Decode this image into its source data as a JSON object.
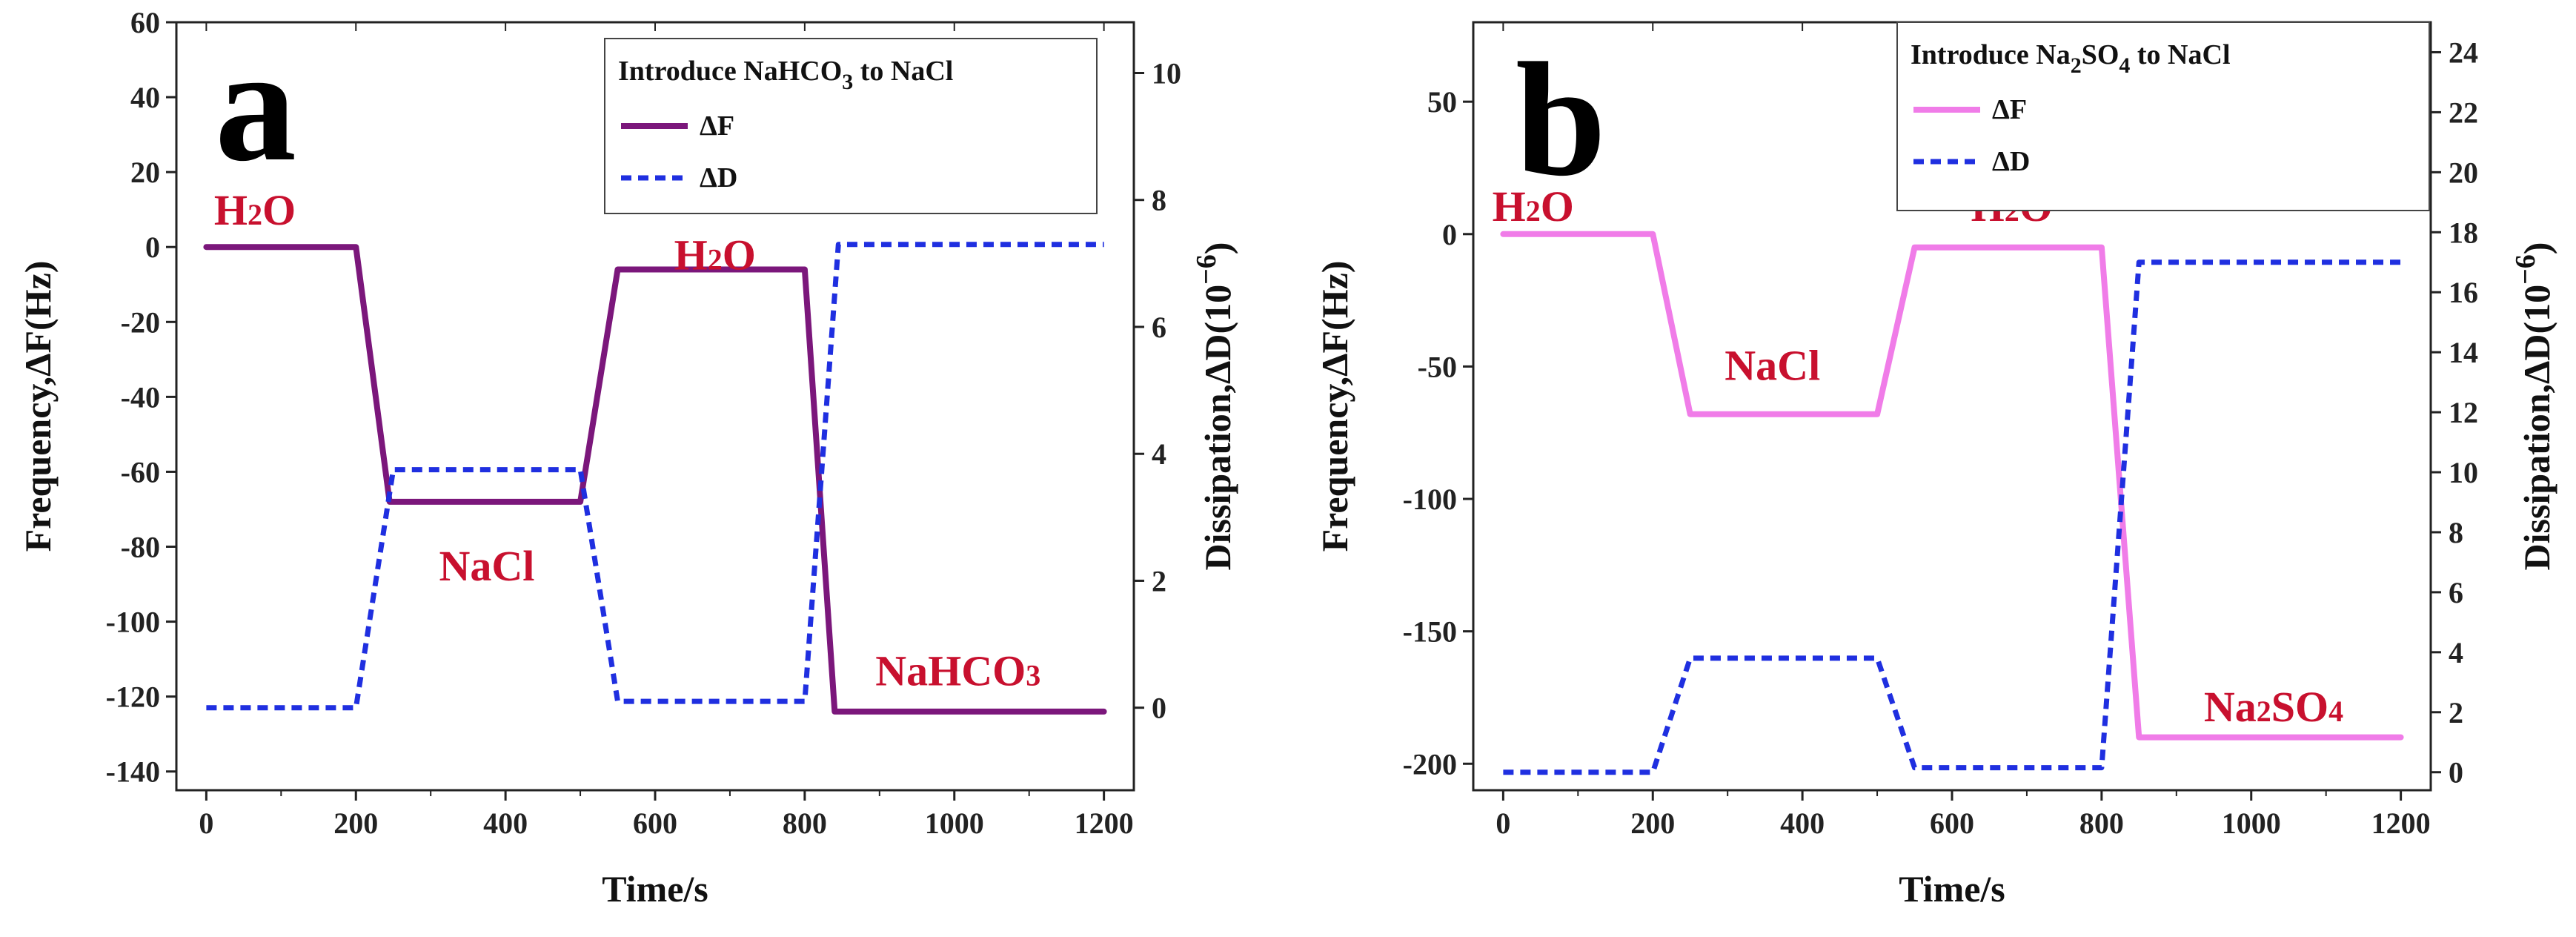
{
  "chart_data": [
    {
      "type": "line",
      "panel_label": "a",
      "legend": {
        "title": "Introduce NaHCO",
        "title_sub": "3",
        "title_tail": " to NaCl",
        "placement": "top-right"
      },
      "xlabel": "Time/s",
      "ylabel": "Frequency,ΔF(Hz)",
      "y2label": "Dissipation,ΔD(10",
      "y2label_exp": "−6",
      "y2label_tail": ")",
      "xlim": [
        -40,
        1240
      ],
      "ylim": [
        -145,
        60
      ],
      "y2lim": [
        -1.3,
        10.8
      ],
      "xticks": [
        0,
        200,
        400,
        600,
        800,
        1000,
        1200
      ],
      "yticks": [
        -140,
        -120,
        -100,
        -80,
        -60,
        -40,
        -20,
        0,
        20,
        40,
        60
      ],
      "y2ticks": [
        0,
        2,
        4,
        6,
        8,
        10
      ],
      "series": [
        {
          "name": "ΔF",
          "axis": "left",
          "color": "#7b177b",
          "style": "solid",
          "x": [
            0,
            200,
            245,
            500,
            550,
            800,
            840,
            1200
          ],
          "y": [
            0,
            0,
            -68,
            -68,
            -6,
            -6,
            -124,
            -124
          ]
        },
        {
          "name": "ΔD",
          "axis": "right",
          "color": "#1f2fe0",
          "style": "dashed",
          "x": [
            0,
            200,
            250,
            500,
            550,
            800,
            845,
            1200
          ],
          "y": [
            0,
            0,
            3.75,
            3.75,
            0.1,
            0.1,
            7.3,
            7.3
          ]
        }
      ],
      "annotations": [
        {
          "main": "H",
          "sub": "2",
          "tail": "O",
          "x": 65,
          "y": 6
        },
        {
          "main": "NaCl",
          "sub": "",
          "tail": "",
          "x": 375,
          "y": -89
        },
        {
          "main": "H",
          "sub": "2",
          "tail": "O",
          "x": 680,
          "y": -6
        },
        {
          "main": "NaHCO",
          "sub": "3",
          "tail": "",
          "x": 1005,
          "y": -117
        }
      ]
    },
    {
      "type": "line",
      "panel_label": "b",
      "legend": {
        "title": "Introduce Na",
        "title_sub": "2",
        "title_mid": "SO",
        "title_sub2": "4",
        "title_tail": " to NaCl",
        "placement": "top-right"
      },
      "xlabel": "Time/s",
      "ylabel": "Frequency,ΔF(Hz)",
      "y2label": "Dissipation,ΔD(10",
      "y2label_exp": "−6",
      "y2label_tail": ")",
      "xlim": [
        -40,
        1240
      ],
      "ylim": [
        -210,
        80
      ],
      "y2lim": [
        -0.6,
        25
      ],
      "xticks": [
        0,
        200,
        400,
        600,
        800,
        1000,
        1200
      ],
      "yticks": [
        -200,
        -150,
        -100,
        -50,
        0,
        50
      ],
      "y2ticks": [
        0,
        2,
        4,
        6,
        8,
        10,
        12,
        14,
        16,
        18,
        20,
        22,
        24
      ],
      "series": [
        {
          "name": "ΔF",
          "axis": "left",
          "color": "#f07ce8",
          "style": "solid",
          "x": [
            0,
            200,
            250,
            500,
            550,
            800,
            850,
            1200
          ],
          "y": [
            0,
            0,
            -68,
            -68,
            -5,
            -5,
            -190,
            -190
          ]
        },
        {
          "name": "ΔD",
          "axis": "right",
          "color": "#1f2fe0",
          "style": "dashed",
          "x": [
            0,
            200,
            250,
            500,
            550,
            800,
            850,
            1200
          ],
          "y": [
            0,
            0,
            3.8,
            3.8,
            0.15,
            0.15,
            17,
            17
          ]
        }
      ],
      "annotations": [
        {
          "main": "H",
          "sub": "2",
          "tail": "O",
          "x": 40,
          "y": 5
        },
        {
          "main": "NaCl",
          "sub": "",
          "tail": "",
          "x": 360,
          "y": -55
        },
        {
          "main": "H",
          "sub": "2",
          "tail": "O",
          "x": 680,
          "y": 5
        },
        {
          "main": "Na",
          "sub": "2",
          "tail": "SO",
          "sub2": "4",
          "x": 1030,
          "y": -184
        }
      ]
    }
  ]
}
